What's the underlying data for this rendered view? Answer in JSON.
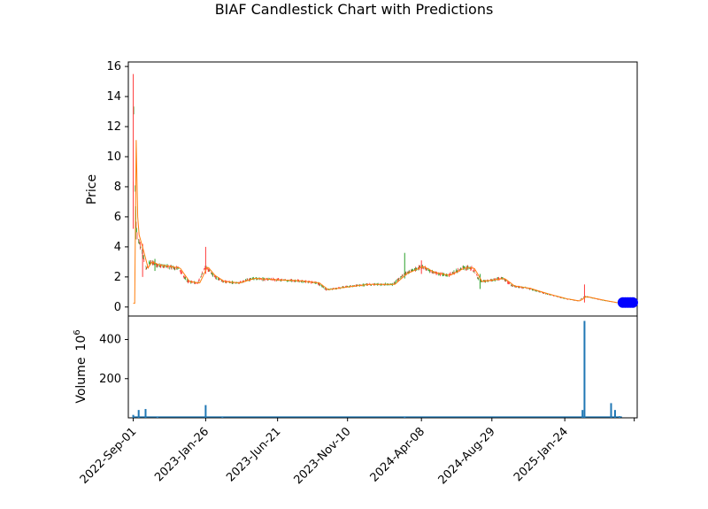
{
  "title": "BIAF Candlestick Chart with Predictions",
  "colors": {
    "up": "#2ca02c",
    "down": "#ff3b3b",
    "ma": "#ff7f0e",
    "volume": "#1f77b4",
    "prediction": "#0000ff"
  },
  "chart_data": [
    {
      "type": "candlestick",
      "ylabel": "Price",
      "ylim": [
        -0.6,
        16.3
      ],
      "yticks": [
        "0",
        "2",
        "4",
        "6",
        "8",
        "10",
        "12",
        "14",
        "16"
      ],
      "xticks": [
        "2022-Sep-01",
        "2023-Jan-26",
        "2023-Jun-21",
        "2023-Nov-10",
        "2024-Apr-08",
        "2024-Aug-29",
        "2025-Jan-24"
      ],
      "xlim": [
        "2022-Aug-22",
        "2025-Jun-20"
      ],
      "price_series": [
        {
          "date": "2022-Sep-01",
          "value": 7.8
        },
        {
          "date": "2022-Sep-02",
          "value": 12.8
        },
        {
          "date": "2022-Sep-06",
          "value": 6.0
        },
        {
          "date": "2022-Sep-09",
          "value": 4.8
        },
        {
          "date": "2022-Sep-14",
          "value": 4.2
        },
        {
          "date": "2022-Sep-20",
          "value": 3.5
        },
        {
          "date": "2022-Sep-27",
          "value": 2.6
        },
        {
          "date": "2022-Oct-05",
          "value": 3.0
        },
        {
          "date": "2022-Oct-20",
          "value": 2.8
        },
        {
          "date": "2022-Nov-10",
          "value": 2.7
        },
        {
          "date": "2022-Dec-01",
          "value": 2.6
        },
        {
          "date": "2022-Dec-20",
          "value": 1.7
        },
        {
          "date": "2023-Jan-10",
          "value": 1.6
        },
        {
          "date": "2023-Jan-26",
          "value": 2.7
        },
        {
          "date": "2023-Feb-10",
          "value": 2.1
        },
        {
          "date": "2023-Mar-01",
          "value": 1.7
        },
        {
          "date": "2023-Apr-01",
          "value": 1.6
        },
        {
          "date": "2023-May-01",
          "value": 1.9
        },
        {
          "date": "2023-Jun-21",
          "value": 1.8
        },
        {
          "date": "2023-Aug-01",
          "value": 1.75
        },
        {
          "date": "2023-Sep-10",
          "value": 1.6
        },
        {
          "date": "2023-Sep-28",
          "value": 1.15
        },
        {
          "date": "2023-Nov-10",
          "value": 1.35
        },
        {
          "date": "2023-Dec-20",
          "value": 1.5
        },
        {
          "date": "2024-Feb-10",
          "value": 1.5
        },
        {
          "date": "2024-Mar-05",
          "value": 2.2
        },
        {
          "date": "2024-Mar-25",
          "value": 2.5
        },
        {
          "date": "2024-Apr-08",
          "value": 2.7
        },
        {
          "date": "2024-May-01",
          "value": 2.3
        },
        {
          "date": "2024-Jun-01",
          "value": 2.1
        },
        {
          "date": "2024-Jul-01",
          "value": 2.6
        },
        {
          "date": "2024-Jul-20",
          "value": 2.6
        },
        {
          "date": "2024-Aug-05",
          "value": 1.7
        },
        {
          "date": "2024-Aug-29",
          "value": 1.8
        },
        {
          "date": "2024-Sep-20",
          "value": 1.9
        },
        {
          "date": "2024-Oct-10",
          "value": 1.4
        },
        {
          "date": "2024-Nov-10",
          "value": 1.25
        },
        {
          "date": "2024-Dec-15",
          "value": 0.9
        },
        {
          "date": "2025-Jan-24",
          "value": 0.55
        },
        {
          "date": "2025-Feb-20",
          "value": 0.4
        },
        {
          "date": "2025-Mar-05",
          "value": 0.7
        },
        {
          "date": "2025-Apr-10",
          "value": 0.45
        },
        {
          "date": "2025-May-05",
          "value": 0.3
        },
        {
          "date": "2025-May-20",
          "value": 0.25
        }
      ],
      "spikes": [
        {
          "date": "2022-Sep-01",
          "high": 15.5,
          "low": 5.2
        },
        {
          "date": "2022-Sep-06",
          "high": 6.7,
          "low": 4.5
        },
        {
          "date": "2022-Sep-20",
          "high": 4.2,
          "low": 2.0
        },
        {
          "date": "2022-Oct-15",
          "high": 3.2,
          "low": 2.4
        },
        {
          "date": "2023-Jan-26",
          "high": 4.0,
          "low": 2.2
        },
        {
          "date": "2024-Mar-05",
          "high": 3.6,
          "low": 1.9
        },
        {
          "date": "2024-Apr-08",
          "high": 3.1,
          "low": 2.2
        },
        {
          "date": "2024-Aug-05",
          "high": 2.2,
          "low": 1.2
        },
        {
          "date": "2025-Mar-05",
          "high": 1.5,
          "low": 0.3
        }
      ],
      "predictions": [
        {
          "date": "2025-May-22",
          "value": 0.3
        },
        {
          "date": "2025-May-27",
          "value": 0.3
        },
        {
          "date": "2025-Jun-01",
          "value": 0.3
        },
        {
          "date": "2025-Jun-06",
          "value": 0.3
        },
        {
          "date": "2025-Jun-11",
          "value": 0.3
        }
      ]
    },
    {
      "type": "bar",
      "ylabel": "Volume",
      "unit": "10",
      "unit_exp": "6",
      "ylim": [
        0,
        520
      ],
      "yticks": [
        "200",
        "400"
      ],
      "volumes": [
        {
          "date": "2022-Sep-01",
          "value": 15
        },
        {
          "date": "2022-Sep-12",
          "value": 40
        },
        {
          "date": "2022-Sep-26",
          "value": 45
        },
        {
          "date": "2022-Oct-20",
          "value": 5
        },
        {
          "date": "2023-Jan-26",
          "value": 65
        },
        {
          "date": "2023-Mar-01",
          "value": 4
        },
        {
          "date": "2024-Mar-05",
          "value": 4
        },
        {
          "date": "2025-Mar-01",
          "value": 40
        },
        {
          "date": "2025-Mar-05",
          "value": 495
        },
        {
          "date": "2025-Apr-28",
          "value": 75
        },
        {
          "date": "2025-May-06",
          "value": 40
        },
        {
          "date": "2025-May-15",
          "value": 8
        }
      ]
    }
  ]
}
